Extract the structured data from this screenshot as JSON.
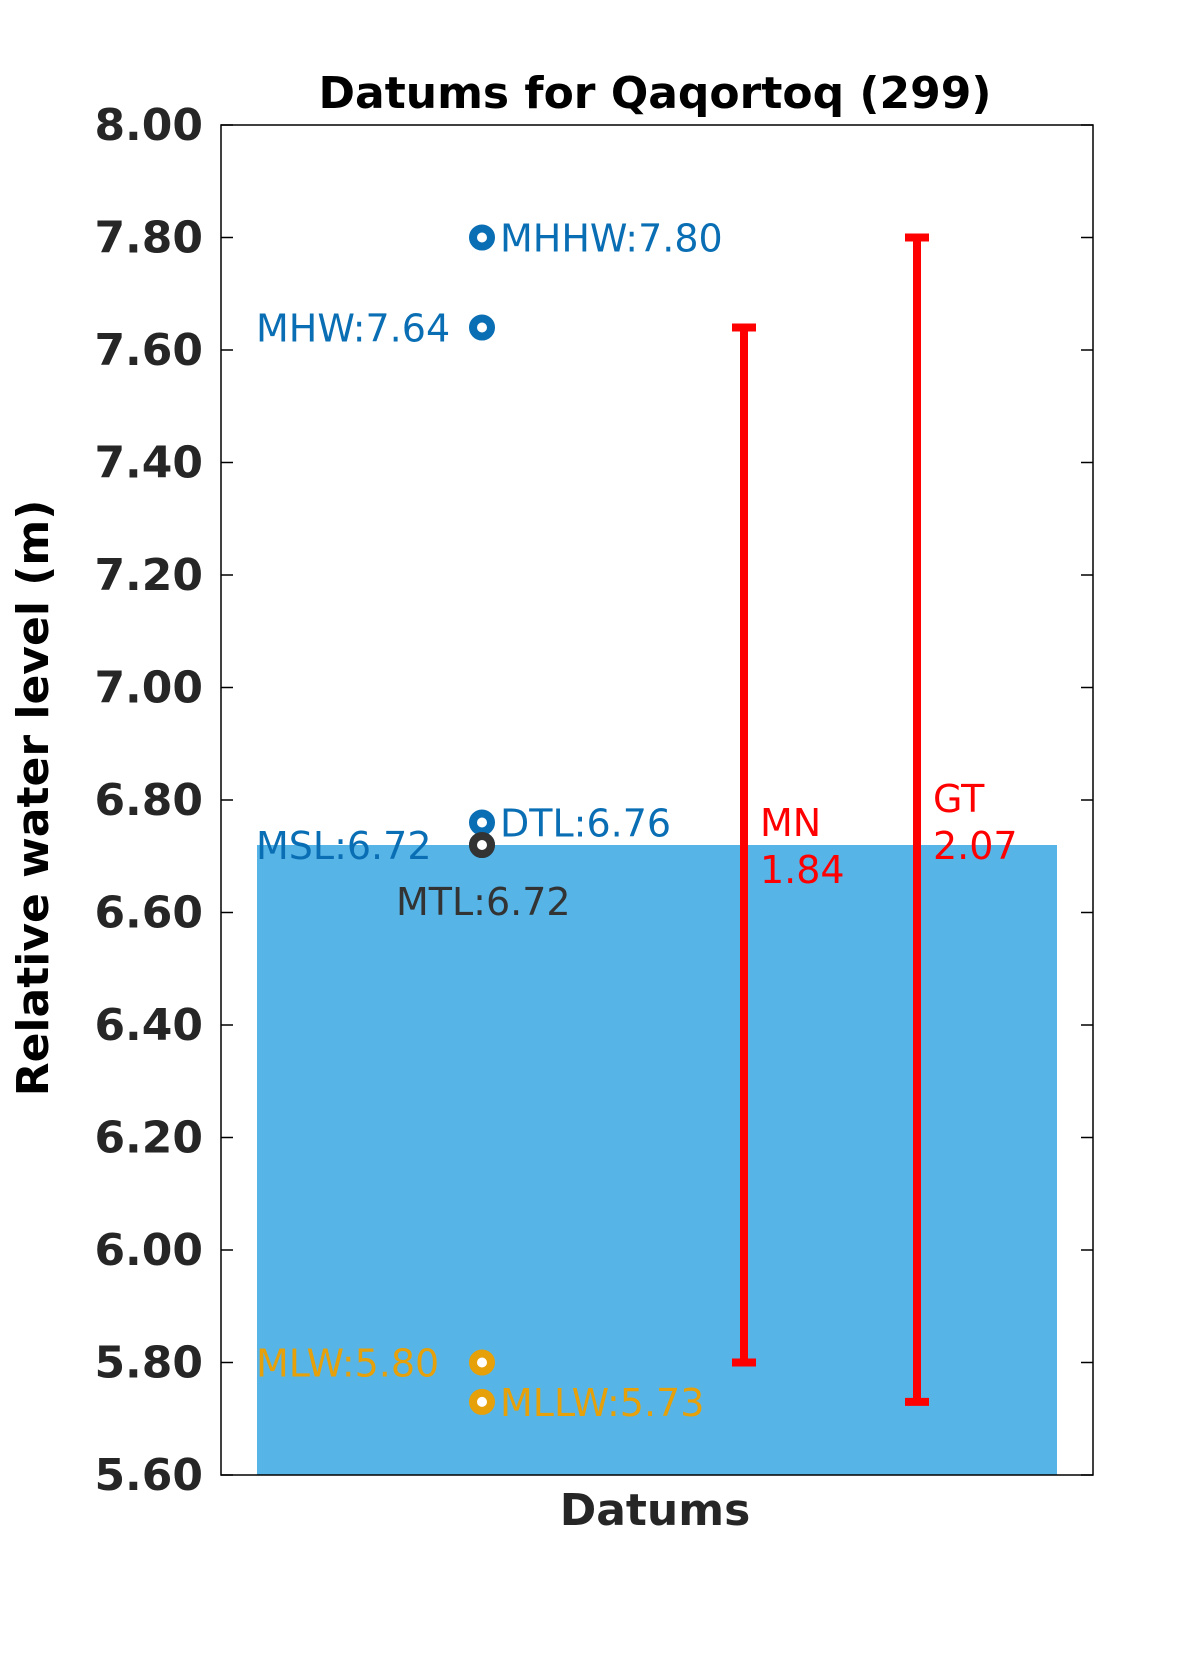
{
  "chart_data": {
    "type": "bar",
    "title": "Datums for Qaqortoq (299)",
    "xlabel": "Datums",
    "ylabel": "Relative water level (m)",
    "ylim": [
      5.6,
      8.0
    ],
    "yticks": [
      "5.60",
      "5.80",
      "6.00",
      "6.20",
      "6.40",
      "6.60",
      "6.80",
      "7.00",
      "7.20",
      "7.40",
      "7.60",
      "7.80",
      "8.00"
    ],
    "grid": false,
    "bar": {
      "value": 6.72,
      "color": "#56b4e6"
    },
    "points": [
      {
        "label": "MHHW:7.80",
        "value": 7.8,
        "color": "#0a6eb4"
      },
      {
        "label": "MHW:7.64",
        "value": 7.64,
        "color": "#0a6eb4"
      },
      {
        "label": "DTL:6.76",
        "value": 6.76,
        "color": "#0a6eb4"
      },
      {
        "label": "MSL:6.72",
        "value": 6.72,
        "color": "#0a6eb4"
      },
      {
        "label": "MTL:6.72",
        "value": 6.72,
        "color": "#333333"
      },
      {
        "label": "MLW:5.80",
        "value": 5.8,
        "color": "#e6a00a"
      },
      {
        "label": "MLLW:5.73",
        "value": 5.73,
        "color": "#e6a00a"
      }
    ],
    "ranges": [
      {
        "name": "MN",
        "value_text": "1.84",
        "low": 5.8,
        "high": 7.64,
        "color": "#ff0000"
      },
      {
        "name": "GT",
        "value_text": "2.07",
        "low": 5.73,
        "high": 7.8,
        "color": "#ff0000"
      }
    ]
  }
}
